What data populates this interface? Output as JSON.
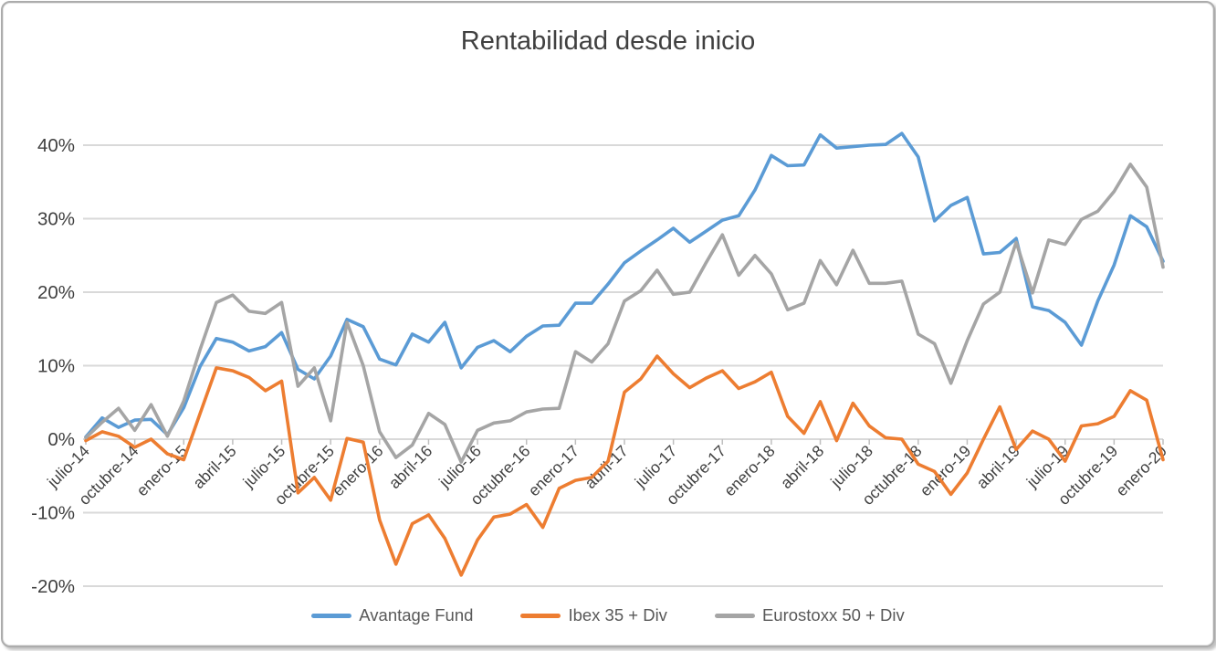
{
  "chart_data": {
    "type": "line",
    "title": "Rentabilidad desde inicio",
    "ylabel": "",
    "xlabel": "",
    "y_ticks": [
      40,
      30,
      20,
      10,
      0,
      -10,
      -20
    ],
    "y_suffix": "%",
    "ylim": [
      -20,
      40
    ],
    "grid": true,
    "legend_position": "bottom",
    "x_label_every": 3,
    "x": [
      "julio-14",
      "agosto-14",
      "septiembre-14",
      "octubre-14",
      "noviembre-14",
      "diciembre-14",
      "enero-15",
      "febrero-15",
      "marzo-15",
      "abril-15",
      "mayo-15",
      "junio-15",
      "julio-15",
      "agosto-15",
      "septiembre-15",
      "octubre-15",
      "noviembre-15",
      "diciembre-15",
      "enero-16",
      "febrero-16",
      "marzo-16",
      "abril-16",
      "mayo-16",
      "junio-16",
      "julio-16",
      "agosto-16",
      "septiembre-16",
      "octubre-16",
      "noviembre-16",
      "diciembre-16",
      "enero-17",
      "febrero-17",
      "marzo-17",
      "abril-17",
      "mayo-17",
      "junio-17",
      "julio-17",
      "agosto-17",
      "septiembre-17",
      "octubre-17",
      "noviembre-17",
      "diciembre-17",
      "enero-18",
      "febrero-18",
      "marzo-18",
      "abril-18",
      "mayo-18",
      "junio-18",
      "julio-18",
      "agosto-18",
      "septiembre-18",
      "octubre-18",
      "noviembre-18",
      "diciembre-18",
      "enero-19",
      "febrero-19",
      "marzo-19",
      "abril-19",
      "mayo-19",
      "junio-19",
      "julio-19",
      "agosto-19",
      "septiembre-19",
      "octubre-19",
      "noviembre-19",
      "diciembre-19",
      "enero-20"
    ],
    "series": [
      {
        "name": "Avantage Fund",
        "color": "#5B9BD5",
        "values": [
          0.3,
          2.9,
          1.6,
          2.6,
          2.7,
          0.6,
          4.3,
          9.9,
          13.7,
          13.2,
          12.0,
          12.6,
          14.5,
          9.5,
          8.2,
          11.3,
          16.3,
          15.3,
          10.9,
          10.1,
          14.3,
          13.2,
          15.9,
          9.7,
          12.5,
          13.4,
          11.9,
          14.0,
          15.4,
          15.5,
          18.5,
          18.5,
          21.1,
          24.0,
          25.6,
          27.1,
          28.7,
          26.8,
          28.3,
          29.8,
          30.4,
          33.9,
          38.6,
          37.2,
          37.3,
          41.4,
          39.6,
          39.8,
          40.0,
          40.1,
          41.6,
          38.4,
          29.7,
          31.8,
          32.9,
          25.2,
          25.4,
          27.3,
          18.0,
          17.5,
          15.9,
          12.8,
          18.8,
          23.7,
          30.4,
          28.9,
          24.2
        ]
      },
      {
        "name": "Ibex 35 + Div",
        "color": "#ED7D31",
        "values": [
          -0.2,
          1.0,
          0.4,
          -1.1,
          0.0,
          -2.0,
          -2.8,
          3.5,
          9.7,
          9.3,
          8.4,
          6.6,
          7.9,
          -7.3,
          -5.2,
          -8.3,
          0.1,
          -0.4,
          -11.0,
          -17.0,
          -11.5,
          -10.3,
          -13.5,
          -18.5,
          -13.7,
          -10.6,
          -10.2,
          -8.9,
          -12.0,
          -6.7,
          -5.6,
          -5.2,
          -3.0,
          6.4,
          8.2,
          11.3,
          8.9,
          7.0,
          8.3,
          9.3,
          6.9,
          7.8,
          9.1,
          3.1,
          0.8,
          5.1,
          -0.2,
          4.9,
          1.8,
          0.2,
          0.0,
          -3.4,
          -4.4,
          -7.5,
          -4.6,
          0.0,
          4.4,
          -1.4,
          1.1,
          0.0,
          -3.0,
          1.8,
          2.1,
          3.1,
          6.6,
          5.3,
          -2.8
        ]
      },
      {
        "name": "Eurostoxx 50 + Div",
        "color": "#A5A5A5",
        "values": [
          0.2,
          2.3,
          4.2,
          1.2,
          4.7,
          0.4,
          5.2,
          12.2,
          18.6,
          19.6,
          17.4,
          17.1,
          18.6,
          7.2,
          9.7,
          2.5,
          15.9,
          10.0,
          1.0,
          -2.5,
          -0.8,
          3.5,
          2.0,
          -3.1,
          1.2,
          2.2,
          2.5,
          3.7,
          4.1,
          4.2,
          11.9,
          10.5,
          13.0,
          18.8,
          20.2,
          23.0,
          19.7,
          20.0,
          24.0,
          27.8,
          22.3,
          25.0,
          22.5,
          17.6,
          18.5,
          24.3,
          21.0,
          25.7,
          21.2,
          21.2,
          21.5,
          14.3,
          13.0,
          7.6,
          13.4,
          18.4,
          20.0,
          26.8,
          19.9,
          27.1,
          26.5,
          29.9,
          31.0,
          33.7,
          37.4,
          34.3,
          23.4
        ]
      }
    ],
    "style": {
      "grid_color": "#D9D9D9",
      "tick_color": "#BFBFBF",
      "label_color": "#404040",
      "title_color": "#404040",
      "legend_color": "#595959"
    }
  }
}
